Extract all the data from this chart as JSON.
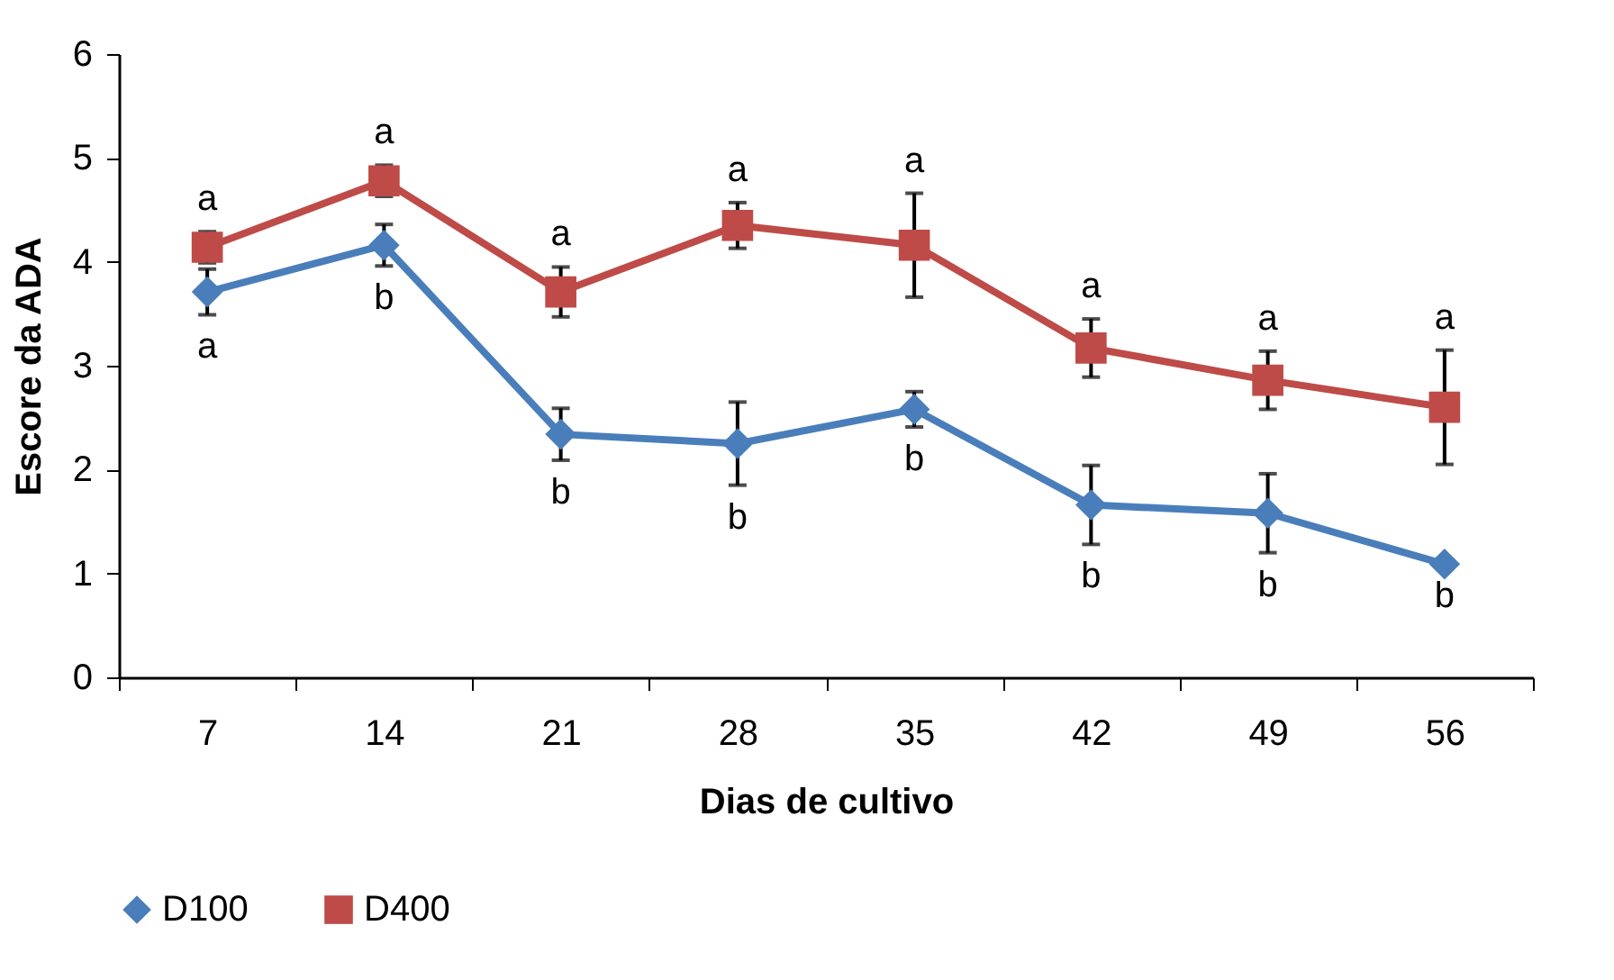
{
  "chart_data": {
    "type": "line",
    "xlabel": "Dias de cultivo",
    "ylabel": "Escore da ADA",
    "categories": [
      "7",
      "14",
      "21",
      "28",
      "35",
      "42",
      "49",
      "56"
    ],
    "series": [
      {
        "name": "D100",
        "color": "#4a7ebb",
        "marker": "diamond",
        "values": [
          3.71,
          4.16,
          2.34,
          2.25,
          2.58,
          1.66,
          1.58,
          1.09
        ],
        "errors": [
          0.22,
          0.2,
          0.25,
          0.4,
          0.17,
          0.38,
          0.38,
          null
        ],
        "value_labels": [
          "a",
          "b",
          "b",
          "b",
          "b",
          "b",
          "b",
          "b"
        ]
      },
      {
        "name": "D400",
        "color": "#be4b48",
        "marker": "square",
        "values": [
          4.14,
          4.78,
          3.71,
          4.35,
          4.16,
          3.17,
          2.86,
          2.6
        ],
        "errors": [
          0.15,
          0.15,
          0.24,
          0.22,
          0.5,
          0.28,
          0.28,
          0.55
        ],
        "value_labels": [
          "a",
          "a",
          "a",
          "a",
          "a",
          "a",
          "a",
          "a"
        ]
      }
    ],
    "ylim": [
      0,
      6
    ],
    "yticks": [
      0,
      1,
      2,
      3,
      4,
      5,
      6
    ],
    "legend": "bottom",
    "line_style": "solid"
  }
}
